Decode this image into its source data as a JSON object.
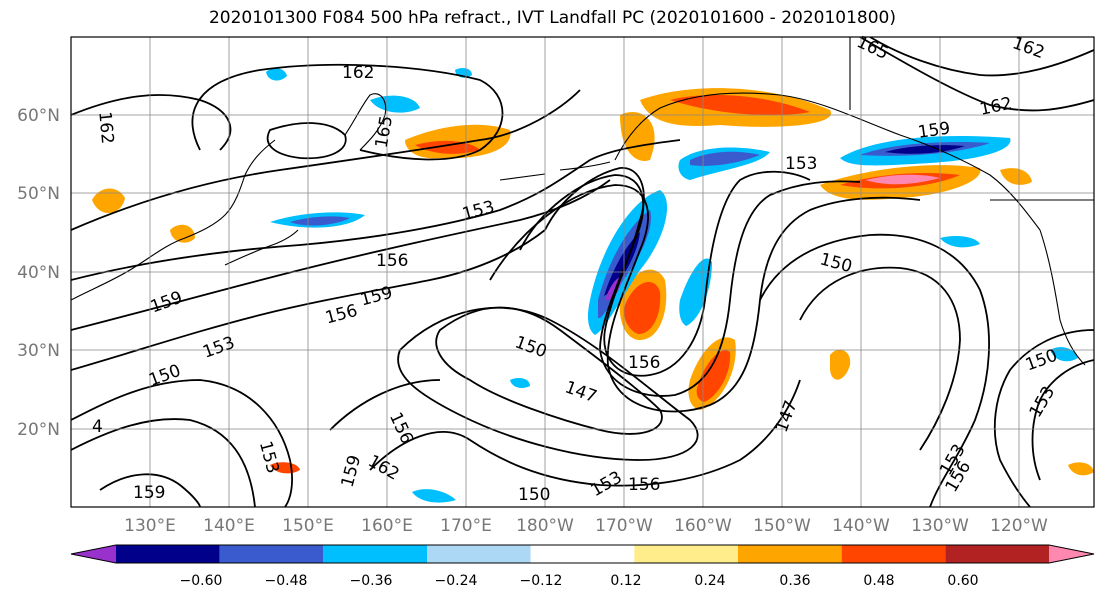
{
  "title": "2020101300 F084 500 hPa refract., IVT Landfall PC (2020101600 - 2020101800)",
  "lat_labels": [
    "60°N",
    "50°N",
    "40°N",
    "30°N",
    "20°N"
  ],
  "lon_labels": [
    "130°E",
    "140°E",
    "150°E",
    "160°E",
    "170°E",
    "180°W",
    "170°W",
    "160°W",
    "150°W",
    "140°W",
    "130°W",
    "120°W"
  ],
  "contour_labels": [
    "162",
    "162",
    "162",
    "165",
    "165",
    "162",
    "159",
    "153",
    "153",
    "156",
    "159",
    "156",
    "159",
    "153",
    "150",
    "156",
    "150",
    "147",
    "156",
    "150",
    "153",
    "156",
    "162",
    "159",
    "159",
    "147",
    "150",
    "150",
    "153",
    "153",
    "156",
    "153",
    "4"
  ],
  "colorbar": {
    "ticks": [
      "−0.60",
      "−0.48",
      "−0.36",
      "−0.24",
      "−0.12",
      "0.12",
      "0.24",
      "0.36",
      "0.48",
      "0.60"
    ],
    "colors": [
      "#9932cc",
      "#00008b",
      "#3a5bcd",
      "#00bfff",
      "#add8f5",
      "#ffffff",
      "#ffec8b",
      "#ffa500",
      "#ff4500",
      "#b22222",
      "#ff88b0"
    ]
  }
}
